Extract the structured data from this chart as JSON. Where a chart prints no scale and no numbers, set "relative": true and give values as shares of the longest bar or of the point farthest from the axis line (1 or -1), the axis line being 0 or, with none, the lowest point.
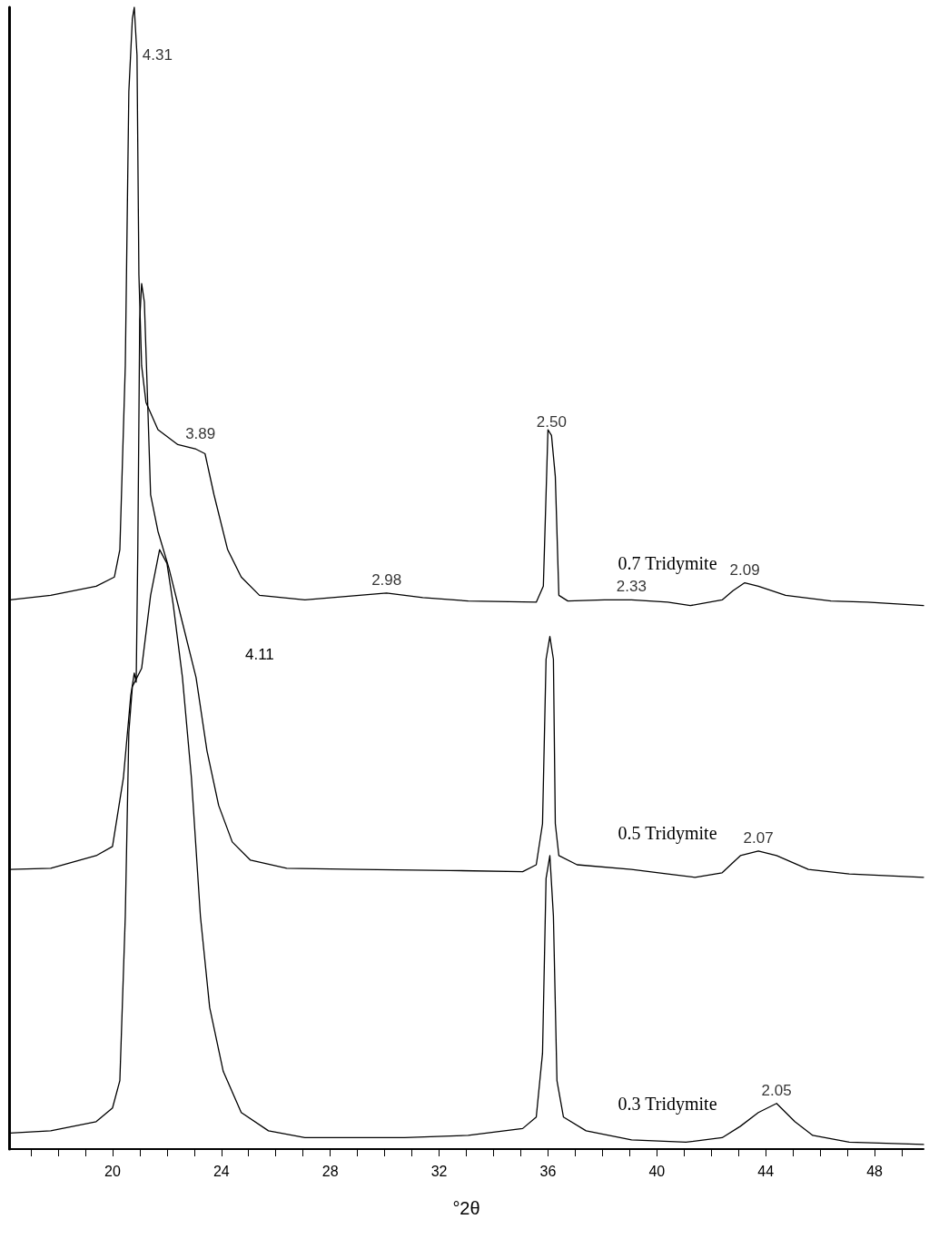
{
  "chart_data": {
    "type": "line",
    "relative": true,
    "xlabel": "°2θ",
    "xlim": [
      16.2,
      49.8
    ],
    "xticks": [
      {
        "value": 17,
        "label": null
      },
      {
        "value": 18,
        "label": null
      },
      {
        "value": 19,
        "label": null
      },
      20,
      {
        "value": 21,
        "label": null
      },
      {
        "value": 22,
        "label": null
      },
      {
        "value": 23,
        "label": null
      },
      24,
      {
        "value": 25,
        "label": null
      },
      {
        "value": 26,
        "label": null
      },
      {
        "value": 27,
        "label": null
      },
      28,
      {
        "value": 29,
        "label": null
      },
      {
        "value": 30,
        "label": null
      },
      {
        "value": 31,
        "label": null
      },
      32,
      {
        "value": 33,
        "label": null
      },
      {
        "value": 34,
        "label": null
      },
      {
        "value": 35,
        "label": null
      },
      36,
      {
        "value": 37,
        "label": null
      },
      {
        "value": 38,
        "label": null
      },
      {
        "value": 39,
        "label": null
      },
      40,
      {
        "value": 41,
        "label": null
      },
      {
        "value": 42,
        "label": null
      },
      {
        "value": 43,
        "label": null
      },
      44,
      {
        "value": 45,
        "label": null
      },
      {
        "value": 46,
        "label": null
      },
      {
        "value": 47,
        "label": null
      },
      48,
      {
        "value": 49,
        "label": null
      }
    ],
    "marker": "none",
    "line_style": "solid",
    "series": [
      {
        "name": "0.7 Tridymite",
        "color": "#000000",
        "x": [
          16.23,
          17.73,
          19.4,
          20.07,
          20.27,
          20.47,
          20.6,
          20.73,
          20.8,
          20.9,
          20.97,
          21.07,
          21.23,
          21.67,
          22.4,
          23.07,
          23.4,
          23.73,
          24.23,
          24.73,
          25.4,
          27.07,
          29.07,
          30.07,
          31.4,
          33.07,
          35.57,
          35.83,
          36.0,
          36.13,
          36.27,
          36.4,
          36.73,
          38.07,
          39.07,
          40.4,
          41.23,
          42.4,
          42.8,
          43.23,
          43.73,
          44.73,
          46.4,
          47.73,
          49.8
        ],
        "values": [
          0.481,
          0.485,
          0.493,
          0.501,
          0.525,
          0.686,
          0.926,
          0.99,
          1.0,
          0.958,
          0.766,
          0.686,
          0.654,
          0.63,
          0.617,
          0.613,
          0.609,
          0.573,
          0.525,
          0.501,
          0.485,
          0.481,
          0.485,
          0.487,
          0.483,
          0.48,
          0.479,
          0.493,
          0.63,
          0.625,
          0.589,
          0.485,
          0.48,
          0.481,
          0.481,
          0.479,
          0.476,
          0.481,
          0.489,
          0.496,
          0.493,
          0.485,
          0.48,
          0.479,
          0.476
        ]
      },
      {
        "name": "0.5 Tridymite",
        "color": "#000000",
        "x": [
          16.23,
          17.73,
          19.4,
          20.0,
          20.4,
          20.67,
          20.8,
          20.87,
          20.93,
          21.0,
          21.07,
          21.17,
          21.27,
          21.4,
          21.67,
          22.07,
          22.57,
          23.07,
          23.47,
          23.9,
          24.4,
          25.07,
          26.4,
          29.07,
          32.4,
          35.07,
          35.57,
          35.8,
          35.93,
          36.07,
          36.2,
          36.27,
          36.4,
          37.07,
          39.07,
          40.4,
          41.4,
          42.4,
          43.07,
          43.73,
          44.4,
          45.57,
          47.07,
          49.8
        ],
        "values": [
          0.245,
          0.246,
          0.257,
          0.265,
          0.325,
          0.397,
          0.417,
          0.409,
          0.525,
          0.726,
          0.758,
          0.742,
          0.67,
          0.573,
          0.541,
          0.509,
          0.461,
          0.413,
          0.349,
          0.301,
          0.269,
          0.253,
          0.246,
          0.245,
          0.244,
          0.243,
          0.249,
          0.285,
          0.429,
          0.449,
          0.429,
          0.285,
          0.257,
          0.249,
          0.245,
          0.241,
          0.238,
          0.242,
          0.257,
          0.261,
          0.257,
          0.245,
          0.241,
          0.238
        ]
      },
      {
        "name": "0.3 Tridymite",
        "color": "#000000",
        "x": [
          16.23,
          17.73,
          19.4,
          20.0,
          20.27,
          20.47,
          20.6,
          20.73,
          21.07,
          21.4,
          21.73,
          22.0,
          22.23,
          22.57,
          22.9,
          23.23,
          23.57,
          24.07,
          24.73,
          25.73,
          27.07,
          30.73,
          33.07,
          35.07,
          35.57,
          35.8,
          35.93,
          36.07,
          36.2,
          36.33,
          36.57,
          37.4,
          39.07,
          41.07,
          42.4,
          43.07,
          43.73,
          44.4,
          45.07,
          45.73,
          47.07,
          49.8
        ],
        "values": [
          0.014,
          0.016,
          0.024,
          0.036,
          0.06,
          0.204,
          0.365,
          0.405,
          0.421,
          0.485,
          0.525,
          0.513,
          0.477,
          0.413,
          0.325,
          0.204,
          0.124,
          0.068,
          0.032,
          0.016,
          0.01,
          0.01,
          0.012,
          0.018,
          0.028,
          0.084,
          0.237,
          0.257,
          0.204,
          0.06,
          0.028,
          0.016,
          0.008,
          0.006,
          0.01,
          0.02,
          0.032,
          0.04,
          0.024,
          0.012,
          0.006,
          0.004
        ]
      }
    ],
    "annotations": [
      {
        "text": "4.31",
        "x": 20.9,
        "y": 0.958
      },
      {
        "text": "3.89",
        "x": 23.23,
        "y": 0.615
      },
      {
        "text": "2.50",
        "x": 36.13,
        "y": 0.625
      },
      {
        "text": "2.98",
        "x": 30.07,
        "y": 0.487
      },
      {
        "text": "2.33",
        "x": 39.07,
        "y": 0.481
      },
      {
        "text": "2.09",
        "x": 43.23,
        "y": 0.496
      },
      "4.11",
      {
        "text": "2.07",
        "x": 43.73,
        "y": 0.261
      },
      {
        "text": "2.05",
        "x": 44.4,
        "y": 0.04
      }
    ]
  }
}
